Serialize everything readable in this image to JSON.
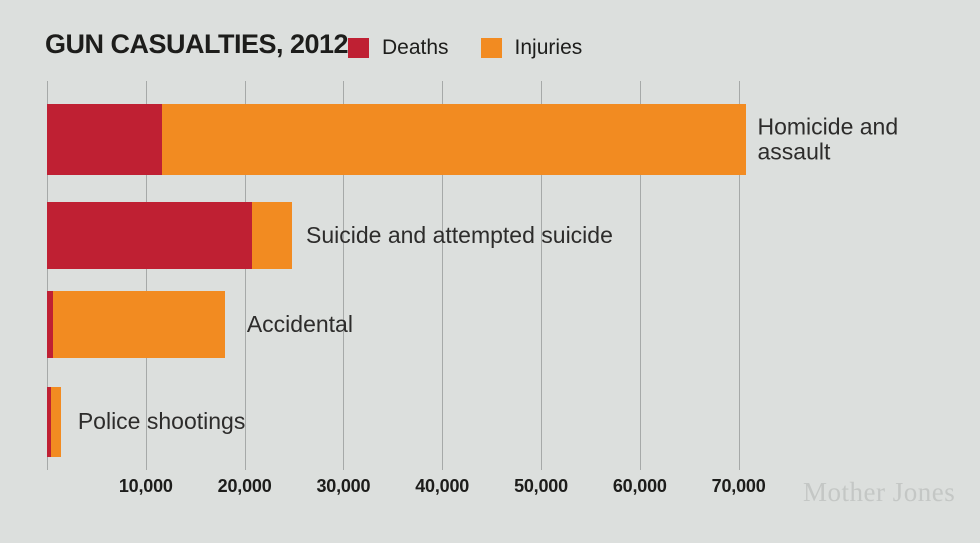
{
  "chart": {
    "title": "GUN CASUALTIES, 2012"
  },
  "watermark": "Mother Jones",
  "colors": {
    "background": "#dcdfdd",
    "deaths": "#bf2033",
    "injuries": "#f28b21",
    "gridline": "#a6a9a8",
    "heading_text": "#1d1d1b",
    "category_text": "#2d2c2b",
    "watermark_text": "#c4c7c5"
  },
  "chart_data": {
    "type": "bar",
    "orientation": "horizontal",
    "stacked": true,
    "title": "GUN CASUALTIES, 2012",
    "categories": [
      "Homicide and assault",
      "Suicide and attempted suicide",
      "Accidental",
      "Police shootings"
    ],
    "series": [
      {
        "name": "Deaths",
        "color": "#bf2033",
        "values": [
          11600,
          20700,
          600,
          400
        ]
      },
      {
        "name": "Injuries",
        "color": "#f28b21",
        "values": [
          59200,
          4100,
          17400,
          1000
        ]
      }
    ],
    "totals": [
      70800,
      24800,
      18000,
      1400
    ],
    "x_ticks": [
      {
        "value": 10000,
        "label": "10,000"
      },
      {
        "value": 20000,
        "label": "20,000"
      },
      {
        "value": 30000,
        "label": "30,000"
      },
      {
        "value": 40000,
        "label": "40,000"
      },
      {
        "value": 50000,
        "label": "50,000"
      },
      {
        "value": 60000,
        "label": "60,000"
      },
      {
        "value": 70000,
        "label": "70,000"
      }
    ],
    "xlim": [
      0,
      80000
    ],
    "grid": true,
    "legend": [
      "Deaths",
      "Injuries"
    ],
    "legend_position": "top"
  }
}
